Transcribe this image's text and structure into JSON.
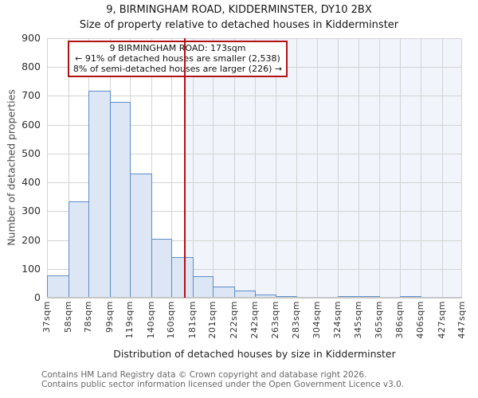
{
  "title": "9, BIRMINGHAM ROAD, KIDDERMINSTER, DY10 2BX",
  "subtitle": "Size of property relative to detached houses in Kidderminster",
  "annotation": {
    "line1": "9 BIRMINGHAM ROAD: 173sqm",
    "line2": "← 91% of detached houses are smaller (2,538)",
    "line3": "8% of semi-detached houses are larger (226) →"
  },
  "footer": {
    "line1": "Contains HM Land Registry data © Crown copyright and database right 2026.",
    "line2": "Contains public sector information licensed under the Open Government Licence v3.0."
  },
  "chart_data": {
    "type": "bar",
    "title": "9, BIRMINGHAM ROAD, KIDDERMINSTER, DY10 2BX",
    "subtitle": "Size of property relative to detached houses in Kidderminster",
    "xlabel": "Distribution of detached houses by size in Kidderminster",
    "ylabel": "Number of detached properties",
    "bin_edges_sqm": [
      37,
      58,
      78,
      99,
      119,
      140,
      160,
      181,
      201,
      222,
      242,
      263,
      283,
      304,
      324,
      345,
      365,
      386,
      406,
      427,
      447
    ],
    "tick_labels": [
      "37sqm",
      "58sqm",
      "78sqm",
      "99sqm",
      "119sqm",
      "140sqm",
      "160sqm",
      "181sqm",
      "201sqm",
      "222sqm",
      "242sqm",
      "263sqm",
      "283sqm",
      "304sqm",
      "324sqm",
      "345sqm",
      "365sqm",
      "386sqm",
      "406sqm",
      "427sqm",
      "447sqm"
    ],
    "values": [
      78,
      334,
      717,
      680,
      432,
      205,
      140,
      75,
      40,
      25,
      10,
      5,
      0,
      0,
      3,
      3,
      0,
      3,
      0,
      0
    ],
    "ylim": [
      0,
      900
    ],
    "ytick_step": 100,
    "grid": true,
    "marker": {
      "sqm": 173,
      "shade_right_of_marker": true
    },
    "colors": {
      "bar_fill": "#dce6f4",
      "bar_border": "#5e8dca",
      "marker_red": "#b11212",
      "shade": "#f1f4fb",
      "grid": "#d3d3d3"
    }
  }
}
